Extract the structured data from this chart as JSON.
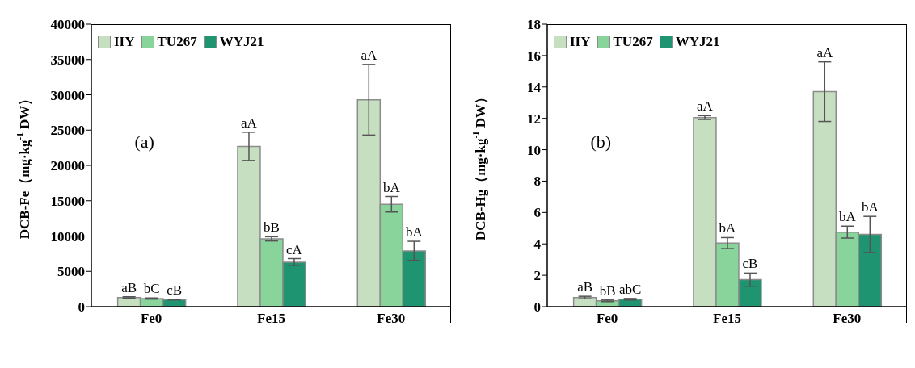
{
  "chart_data": [
    {
      "type": "bar",
      "categories": [
        "Fe0",
        "Fe15",
        "Fe30"
      ],
      "ylabel": "DCB-Fe（mg·kg$^{-1}$ DW）",
      "ylim": [
        0,
        40000
      ],
      "yticks": [
        0,
        5000,
        10000,
        15000,
        20000,
        25000,
        30000,
        35000,
        40000
      ],
      "grid": false,
      "legend": "top left",
      "annotations": [
        "(a)"
      ],
      "series": [
        {
          "name": "IIY",
          "color": "#c6dfc0",
          "values": [
            1300,
            22700,
            29300
          ],
          "errors": [
            100,
            2000,
            5000
          ],
          "value_labels": [
            "aB",
            "aA",
            "aA"
          ]
        },
        {
          "name": "TU267",
          "color": "#88d49a",
          "values": [
            1150,
            9600,
            14500
          ],
          "errors": [
            80,
            300,
            1100
          ],
          "value_labels": [
            "bC",
            "bB",
            "bA"
          ]
        },
        {
          "name": "WYJ21",
          "color": "#1e9470",
          "values": [
            1000,
            6300,
            7900
          ],
          "errors": [
            50,
            500,
            1350
          ],
          "value_labels": [
            "cB",
            "cA",
            "bA"
          ]
        }
      ]
    },
    {
      "type": "bar",
      "categories": [
        "Fe0",
        "Fe15",
        "Fe30"
      ],
      "ylabel": "DCB-Hg（mg·kg$^{-1}$ DW）",
      "ylim": [
        0,
        18
      ],
      "yticks": [
        0,
        2,
        4,
        6,
        8,
        10,
        12,
        14,
        16,
        18
      ],
      "grid": false,
      "legend": "top left",
      "annotations": [
        "(b)"
      ],
      "series": [
        {
          "name": "IIY",
          "color": "#c6dfc0",
          "values": [
            0.58,
            12.05,
            13.7
          ],
          "errors": [
            0.08,
            0.12,
            1.9
          ],
          "value_labels": [
            "aB",
            "aA",
            "aA"
          ]
        },
        {
          "name": "TU267",
          "color": "#88d49a",
          "values": [
            0.37,
            4.05,
            4.75
          ],
          "errors": [
            0.05,
            0.35,
            0.38
          ],
          "value_labels": [
            "bB",
            "bA",
            "bA"
          ]
        },
        {
          "name": "WYJ21",
          "color": "#1e9470",
          "values": [
            0.47,
            1.72,
            4.6
          ],
          "errors": [
            0.05,
            0.42,
            1.15
          ],
          "value_labels": [
            "abC",
            "cB",
            "bA"
          ]
        }
      ]
    }
  ]
}
